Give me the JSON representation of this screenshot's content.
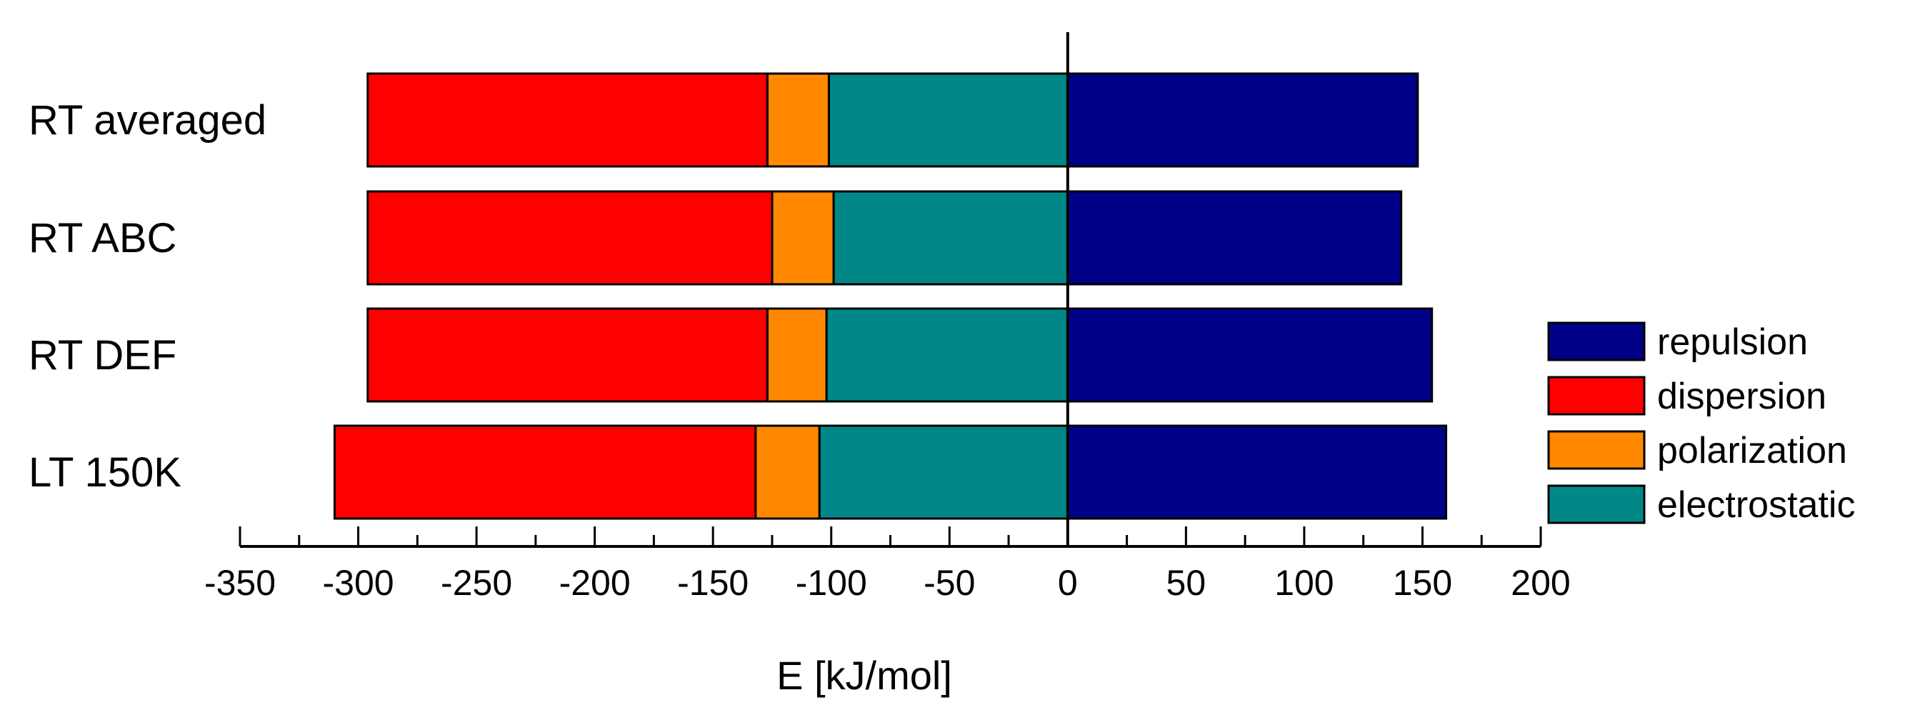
{
  "chart_data": {
    "type": "bar",
    "orientation": "horizontal",
    "stacked": true,
    "title": "",
    "xlabel": "E [kJ/mol]",
    "ylabel": "",
    "xlim": [
      -350,
      200
    ],
    "major_ticks": [
      -350,
      -300,
      -250,
      -200,
      -150,
      -100,
      -50,
      0,
      50,
      100,
      150,
      200
    ],
    "tick_labels": [
      "-350",
      "-300",
      "-250",
      "-200",
      "-150",
      "-100",
      "-50",
      "0",
      "50",
      "100",
      "150",
      "200"
    ],
    "minor_tick_step": 25,
    "grid": false,
    "legend_position": "right",
    "categories": [
      "RT averaged",
      "RT ABC",
      "RT DEF",
      "LT 150K"
    ],
    "series": [
      {
        "name": "repulsion",
        "color": "#000088",
        "side": "positive",
        "values": [
          148,
          141,
          154,
          160
        ]
      },
      {
        "name": "dispersion",
        "color": "#ff0000",
        "side": "negative",
        "values": [
          -169,
          -171,
          -169,
          -178
        ]
      },
      {
        "name": "polarization",
        "color": "#ff8800",
        "side": "negative",
        "values": [
          -26,
          -26,
          -25,
          -27
        ]
      },
      {
        "name": "electrostatic",
        "color": "#008888",
        "side": "negative",
        "values": [
          -101,
          -99,
          -102,
          -105
        ]
      }
    ],
    "legend_order": [
      "repulsion",
      "dispersion",
      "polarization",
      "electrostatic"
    ],
    "negative_stack_order": [
      "electrostatic",
      "polarization",
      "dispersion"
    ]
  }
}
